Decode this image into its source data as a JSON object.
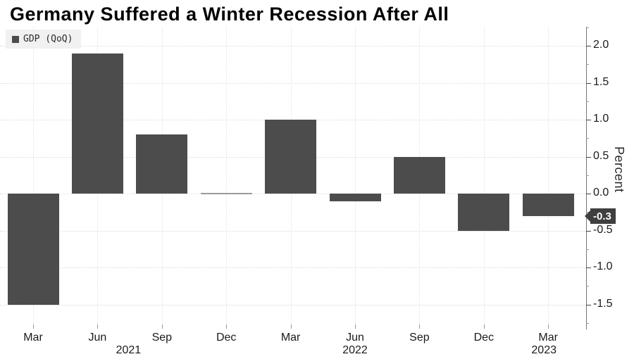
{
  "title": "Germany Suffered a Winter Recession After All",
  "legend": {
    "label": "GDP (QoQ)"
  },
  "chart_data": {
    "type": "bar",
    "title": "Germany Suffered a Winter Recession After All",
    "legend_entries": [
      "GDP (QoQ)"
    ],
    "legend_position": "top-left",
    "categories": [
      "Mar 2021",
      "Jun 2021",
      "Sep 2021",
      "Dec 2021",
      "Mar 2022",
      "Jun 2022",
      "Sep 2022",
      "Dec 2022",
      "Mar 2023"
    ],
    "x_tick_labels": [
      "Mar",
      "Jun",
      "Sep",
      "Dec",
      "Mar",
      "Jun",
      "Sep",
      "Dec",
      "Mar"
    ],
    "year_labels": [
      {
        "text": "2021",
        "slot": 1
      },
      {
        "text": "2022",
        "slot": 5
      },
      {
        "text": "2023",
        "slot": 8
      }
    ],
    "series": [
      {
        "name": "GDP (QoQ)",
        "values": [
          -1.5,
          1.9,
          0.8,
          0.0,
          1.0,
          -0.1,
          0.5,
          -0.5,
          -0.3
        ]
      }
    ],
    "ylabel": "Percent",
    "ylim": [
      -1.84,
      2.25
    ],
    "yticks": [
      2.0,
      1.5,
      1.0,
      0.5,
      0.0,
      -0.5,
      -1.0,
      -1.5
    ],
    "ytick_labels": [
      "2.0",
      "1.5",
      "1.0",
      "0.5",
      "0.0",
      "-0.5",
      "-1.0",
      "-1.5"
    ],
    "minor_tick_step": 0.25,
    "grid": true,
    "annotations": {
      "last_value_badge": "-0.3"
    },
    "colors": {
      "bar": "#4c4c4c",
      "zero_bar": "#9a9a9a",
      "badge_bg": "#3f3f3f",
      "badge_fg": "#ffffff",
      "background": "#ffffff"
    }
  }
}
